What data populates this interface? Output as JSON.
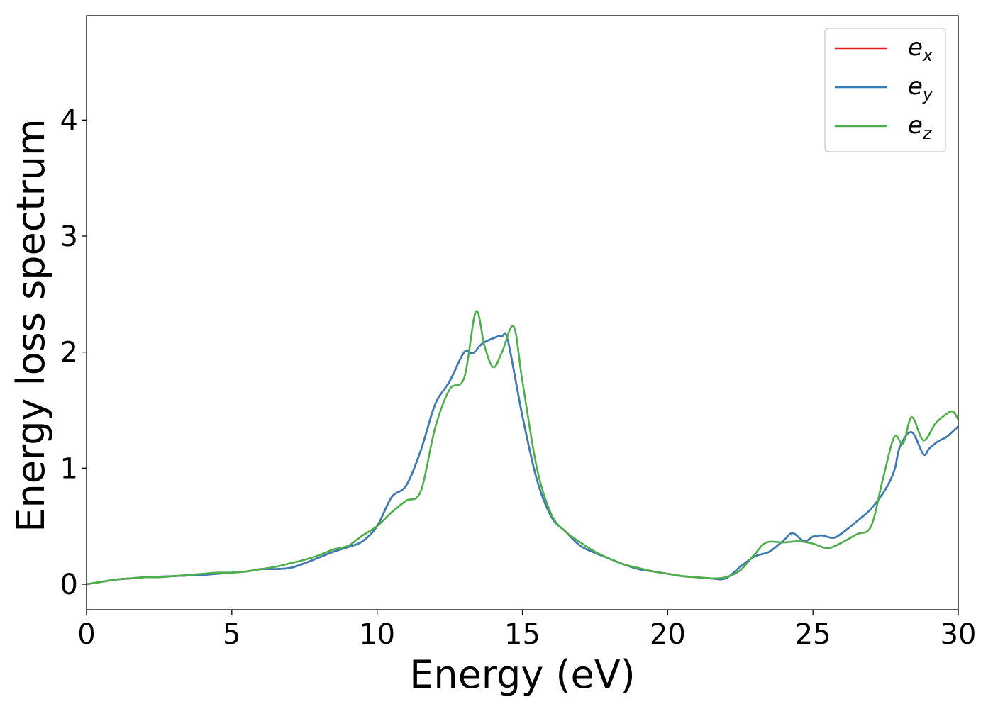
{
  "chart_data": {
    "type": "line",
    "xlabel": "Energy (eV)",
    "ylabel": "Energy loss spectrum",
    "xlim": [
      0,
      30
    ],
    "ylim": [
      -0.22,
      4.9
    ],
    "xticks": [
      0,
      5,
      10,
      15,
      20,
      25,
      30
    ],
    "yticks": [
      0,
      1,
      2,
      3,
      4
    ],
    "grid": false,
    "legend_position": "top-right",
    "series": [
      {
        "name": "e",
        "subscript": "x",
        "color": "#e41a1c",
        "x": [
          0,
          0.5,
          1,
          1.5,
          2,
          2.5,
          3,
          3.5,
          4,
          4.5,
          5,
          5.5,
          6,
          6.5,
          7,
          7.5,
          8,
          8.5,
          9,
          9.5,
          10,
          10.5,
          11,
          11.5,
          12,
          12.5,
          13,
          13.3,
          13.6,
          14,
          14.3,
          14.5,
          15,
          15.5,
          16,
          16.5,
          17,
          17.5,
          18,
          18.5,
          19,
          19.5,
          20,
          20.5,
          21,
          21.5,
          22,
          22.5,
          23,
          23.5,
          24,
          24.3,
          24.7,
          25,
          25.3,
          25.7,
          26,
          26.5,
          27,
          27.5,
          27.8,
          28,
          28.4,
          28.8,
          29,
          29.3,
          29.6,
          30
        ],
        "y": [
          0,
          0.02,
          0.04,
          0.05,
          0.06,
          0.065,
          0.07,
          0.075,
          0.08,
          0.09,
          0.1,
          0.11,
          0.13,
          0.13,
          0.14,
          0.18,
          0.23,
          0.28,
          0.32,
          0.37,
          0.5,
          0.75,
          0.85,
          1.15,
          1.55,
          1.75,
          2.0,
          1.99,
          2.07,
          2.12,
          2.14,
          2.1,
          1.45,
          0.9,
          0.58,
          0.45,
          0.33,
          0.27,
          0.22,
          0.17,
          0.13,
          0.11,
          0.09,
          0.07,
          0.06,
          0.05,
          0.05,
          0.15,
          0.24,
          0.28,
          0.38,
          0.44,
          0.37,
          0.41,
          0.42,
          0.4,
          0.44,
          0.54,
          0.65,
          0.82,
          0.98,
          1.19,
          1.31,
          1.12,
          1.17,
          1.23,
          1.27,
          1.36
        ]
      },
      {
        "name": "e",
        "subscript": "y",
        "color": "#377eb8",
        "x": [
          0,
          0.5,
          1,
          1.5,
          2,
          2.5,
          3,
          3.5,
          4,
          4.5,
          5,
          5.5,
          6,
          6.5,
          7,
          7.5,
          8,
          8.5,
          9,
          9.5,
          10,
          10.5,
          11,
          11.5,
          12,
          12.5,
          13,
          13.3,
          13.6,
          14,
          14.3,
          14.5,
          15,
          15.5,
          16,
          16.5,
          17,
          17.5,
          18,
          18.5,
          19,
          19.5,
          20,
          20.5,
          21,
          21.5,
          22,
          22.5,
          23,
          23.5,
          24,
          24.3,
          24.7,
          25,
          25.3,
          25.7,
          26,
          26.5,
          27,
          27.5,
          27.8,
          28,
          28.4,
          28.8,
          29,
          29.3,
          29.6,
          30
        ],
        "y": [
          0,
          0.02,
          0.04,
          0.05,
          0.06,
          0.065,
          0.07,
          0.075,
          0.08,
          0.09,
          0.1,
          0.11,
          0.13,
          0.13,
          0.14,
          0.18,
          0.23,
          0.28,
          0.32,
          0.37,
          0.5,
          0.75,
          0.85,
          1.15,
          1.55,
          1.75,
          2.0,
          1.99,
          2.07,
          2.12,
          2.14,
          2.1,
          1.45,
          0.9,
          0.58,
          0.45,
          0.33,
          0.27,
          0.22,
          0.17,
          0.13,
          0.11,
          0.09,
          0.07,
          0.06,
          0.05,
          0.05,
          0.15,
          0.24,
          0.28,
          0.38,
          0.44,
          0.37,
          0.41,
          0.42,
          0.4,
          0.44,
          0.54,
          0.65,
          0.82,
          0.98,
          1.19,
          1.31,
          1.12,
          1.17,
          1.23,
          1.27,
          1.36
        ]
      },
      {
        "name": "e",
        "subscript": "z",
        "color": "#4daf4a",
        "x": [
          0,
          0.5,
          1,
          1.5,
          2,
          2.5,
          3,
          3.5,
          4,
          4.5,
          5,
          5.5,
          6,
          6.5,
          7,
          7.5,
          8,
          8.5,
          9,
          9.5,
          10,
          10.5,
          11,
          11.5,
          12,
          12.5,
          13,
          13.4,
          13.7,
          14,
          14.3,
          14.7,
          15,
          15.5,
          16,
          16.5,
          17,
          17.5,
          18,
          18.5,
          19,
          19.5,
          20,
          20.5,
          21,
          21.5,
          22,
          22.5,
          23,
          23.4,
          24,
          24.5,
          25,
          25.5,
          26,
          26.5,
          27,
          27.4,
          27.8,
          28.1,
          28.4,
          28.8,
          29.2,
          29.5,
          29.8,
          30
        ],
        "y": [
          0,
          0.02,
          0.04,
          0.05,
          0.06,
          0.06,
          0.07,
          0.08,
          0.09,
          0.1,
          0.1,
          0.11,
          0.13,
          0.15,
          0.18,
          0.21,
          0.25,
          0.3,
          0.33,
          0.42,
          0.5,
          0.62,
          0.72,
          0.8,
          1.35,
          1.68,
          1.78,
          2.35,
          2.05,
          1.87,
          2.0,
          2.22,
          1.75,
          1.0,
          0.6,
          0.45,
          0.36,
          0.28,
          0.22,
          0.17,
          0.14,
          0.11,
          0.09,
          0.07,
          0.06,
          0.05,
          0.06,
          0.12,
          0.26,
          0.36,
          0.36,
          0.37,
          0.35,
          0.31,
          0.36,
          0.43,
          0.5,
          0.9,
          1.27,
          1.21,
          1.44,
          1.24,
          1.38,
          1.45,
          1.49,
          1.42
        ]
      }
    ]
  }
}
